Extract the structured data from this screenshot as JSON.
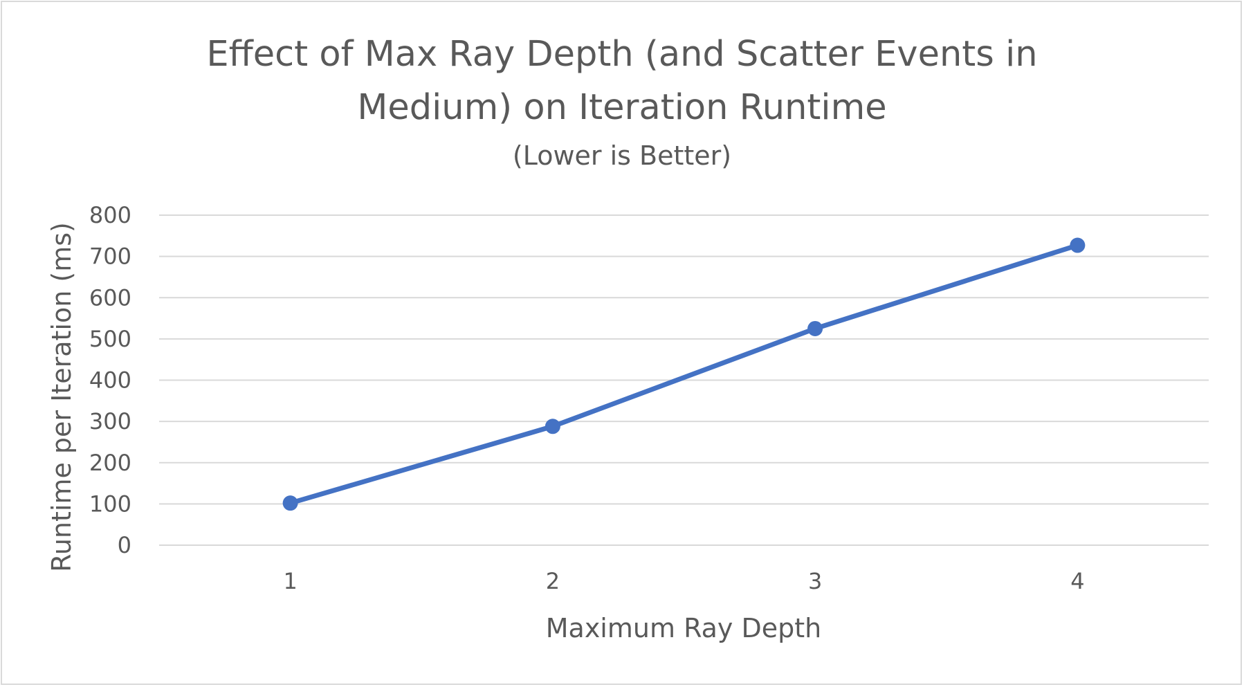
{
  "chart_data": {
    "type": "line",
    "title_lines": [
      "Effect of Max Ray Depth (and Scatter Events in",
      "Medium) on Iteration Runtime"
    ],
    "subtitle": "(Lower is Better)",
    "xlabel": "Maximum Ray Depth",
    "ylabel": "Runtime per Iteration (ms)",
    "categories": [
      "1",
      "2",
      "3",
      "4"
    ],
    "series": [
      {
        "values": [
          102,
          288,
          525,
          727
        ],
        "color": "#4472c4"
      }
    ],
    "ylim": [
      0,
      800
    ],
    "yticks": [
      0,
      100,
      200,
      300,
      400,
      500,
      600,
      700,
      800
    ],
    "grid": true,
    "gridline_color": "#d9d9d9",
    "text_color": "#595959",
    "legend": "none"
  }
}
